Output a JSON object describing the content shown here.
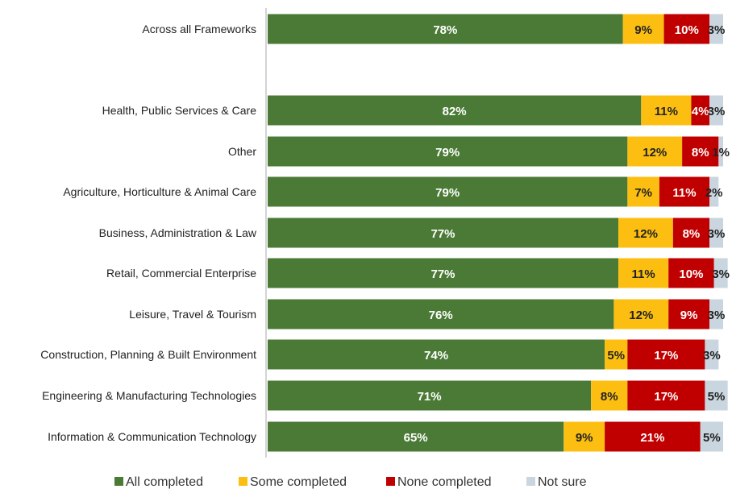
{
  "chart_data": {
    "type": "bar",
    "orientation": "horizontal",
    "stacked": true,
    "title": "",
    "xlabel": "",
    "ylabel": "",
    "xlim": [
      0,
      100
    ],
    "grid": false,
    "legend_position": "bottom",
    "categories": [
      "Across all Frameworks",
      "Health, Public Services & Care",
      "Other",
      "Agriculture, Horticulture  & Animal Care",
      "Business, Administration & Law",
      "Retail, Commercial Enterprise",
      "Leisure, Travel & Tourism",
      "Construction, Planning & Built Environment",
      "Engineering & Manufacturing Technologies",
      "Information & Communication Technology"
    ],
    "series": [
      {
        "name": "All completed",
        "color": "#4a7a35",
        "label_color": "#ffffff",
        "values": [
          78,
          82,
          79,
          79,
          77,
          77,
          76,
          74,
          71,
          65
        ]
      },
      {
        "name": "Some completed",
        "color": "#fcbf11",
        "label_color": "#222222",
        "values": [
          9,
          11,
          12,
          7,
          12,
          11,
          12,
          5,
          8,
          9
        ]
      },
      {
        "name": "None completed",
        "color": "#c00000",
        "label_color": "#ffffff",
        "values": [
          10,
          4,
          8,
          11,
          8,
          10,
          9,
          17,
          17,
          21
        ]
      },
      {
        "name": "Not sure",
        "color": "#c9d6df",
        "label_color": "#222222",
        "values": [
          3,
          3,
          1,
          2,
          3,
          3,
          3,
          3,
          5,
          5
        ]
      }
    ]
  }
}
